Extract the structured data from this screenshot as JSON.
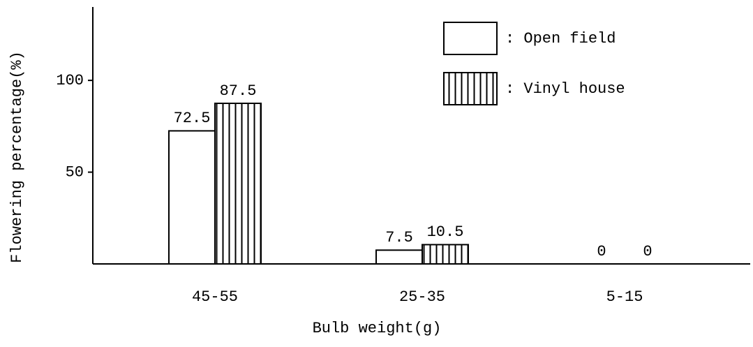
{
  "chart_data": {
    "type": "bar",
    "xlabel": "Bulb weight(g)",
    "ylabel": "Flowering percentage(%)",
    "categories": [
      "45-55",
      "25-35",
      "5-15"
    ],
    "series": [
      {
        "name": ": Open field",
        "color": "#ffffff",
        "values": [
          72.5,
          7.5,
          0
        ]
      },
      {
        "name": ": Vinyl house",
        "color": "hatched",
        "values": [
          87.5,
          10.5,
          0
        ]
      }
    ],
    "ylim": [
      0,
      140
    ],
    "yticks": [
      50,
      100
    ],
    "legend": "upper right"
  }
}
